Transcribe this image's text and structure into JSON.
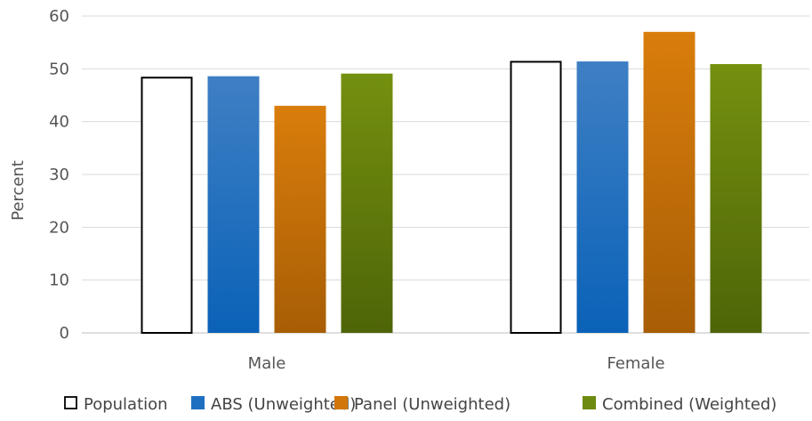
{
  "chart_data": {
    "type": "bar",
    "title": "",
    "xlabel": "",
    "ylabel": "Percent",
    "ylim": [
      0,
      60
    ],
    "yticks": [
      0,
      10,
      20,
      30,
      40,
      50,
      60
    ],
    "grid": true,
    "legend_position": "bottom",
    "categories": [
      "Male",
      "Female"
    ],
    "series": [
      {
        "name": "Population",
        "values": [
          48.5,
          51.5
        ],
        "color": "#ffffff",
        "stroke": "#000000"
      },
      {
        "name": "ABS (Unweighted)",
        "values": [
          48.6,
          51.4
        ],
        "color": "#1f6fc0"
      },
      {
        "name": "Panel (Unweighted)",
        "values": [
          43.0,
          57.0
        ],
        "color": "#d0760a"
      },
      {
        "name": "Combined (Weighted)",
        "values": [
          49.1,
          50.9
        ],
        "color": "#6e8a10"
      }
    ]
  }
}
